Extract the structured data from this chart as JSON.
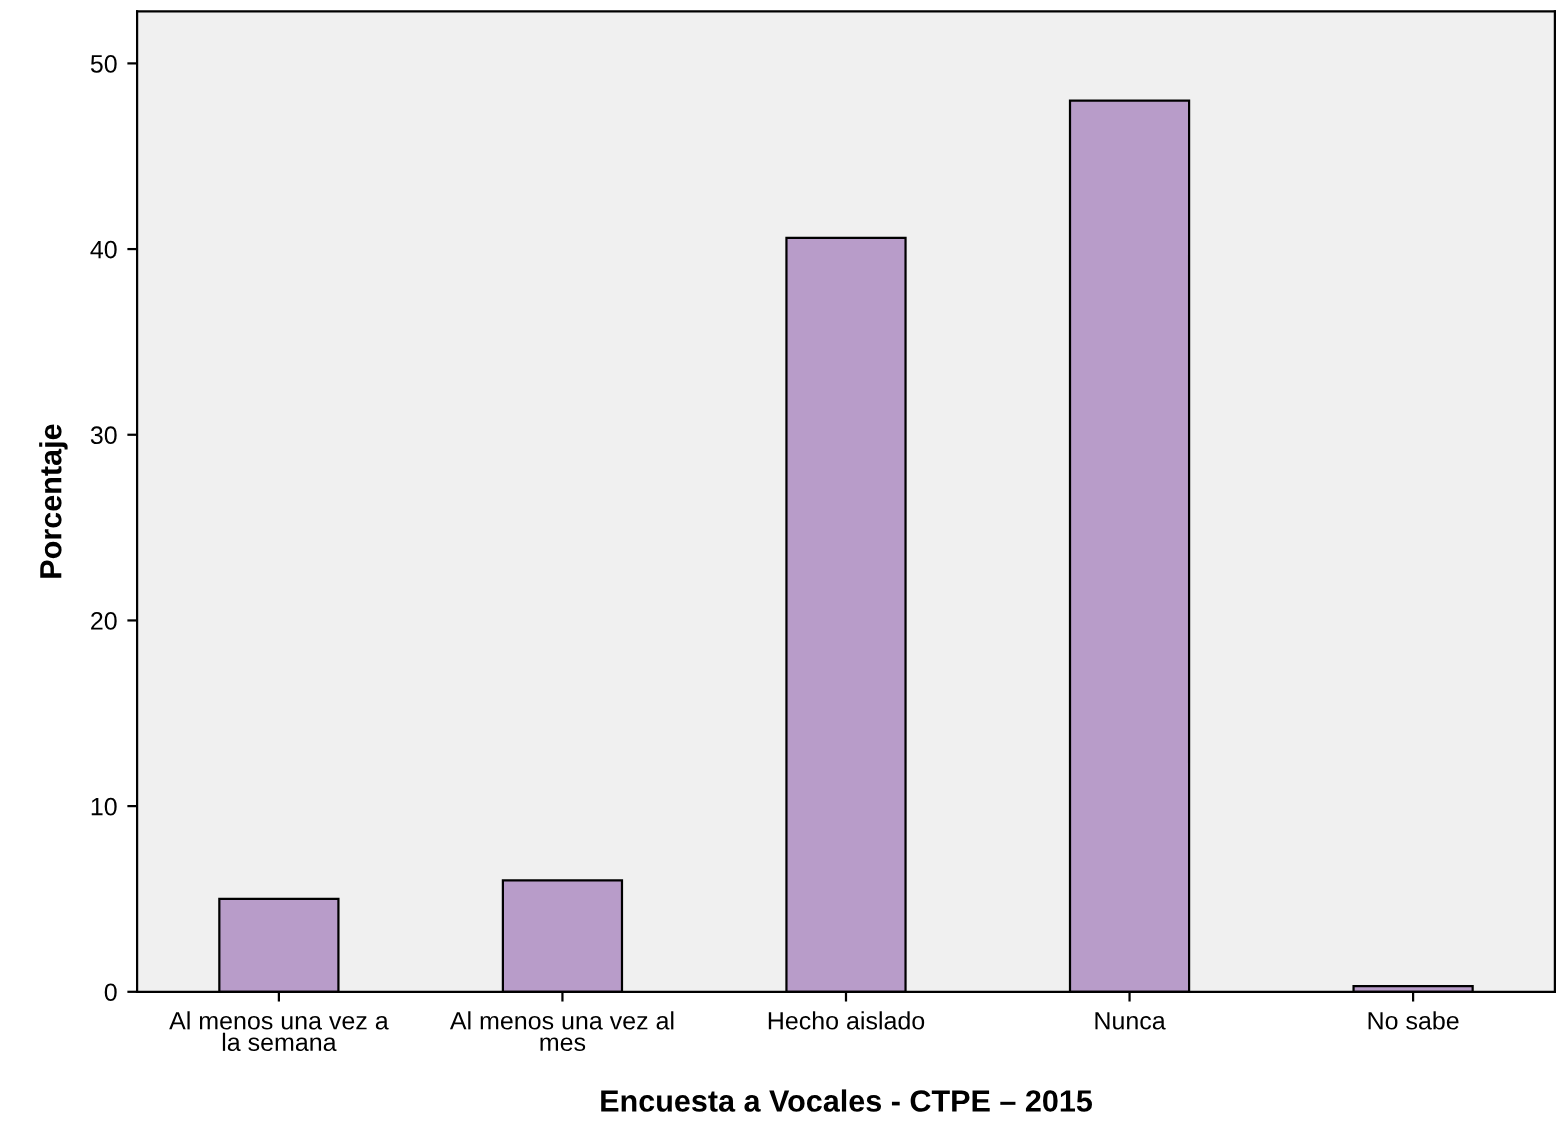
{
  "chart_data": {
    "type": "bar",
    "xlabel": "Encuesta a Vocales - CTPE – 2015",
    "ylabel": "Porcentaje",
    "categories": [
      "Al menos una vez a\nla semana",
      "Al menos una vez al\nmes",
      "Hecho aislado",
      "Nunca",
      "No sabe"
    ],
    "values": [
      5.0,
      6.0,
      40.6,
      48.0,
      0.3
    ],
    "color": "#b89cc9",
    "ylim": [
      0,
      52.8
    ],
    "yticks": [
      0,
      10,
      20,
      30,
      40,
      50
    ],
    "grid": false
  }
}
